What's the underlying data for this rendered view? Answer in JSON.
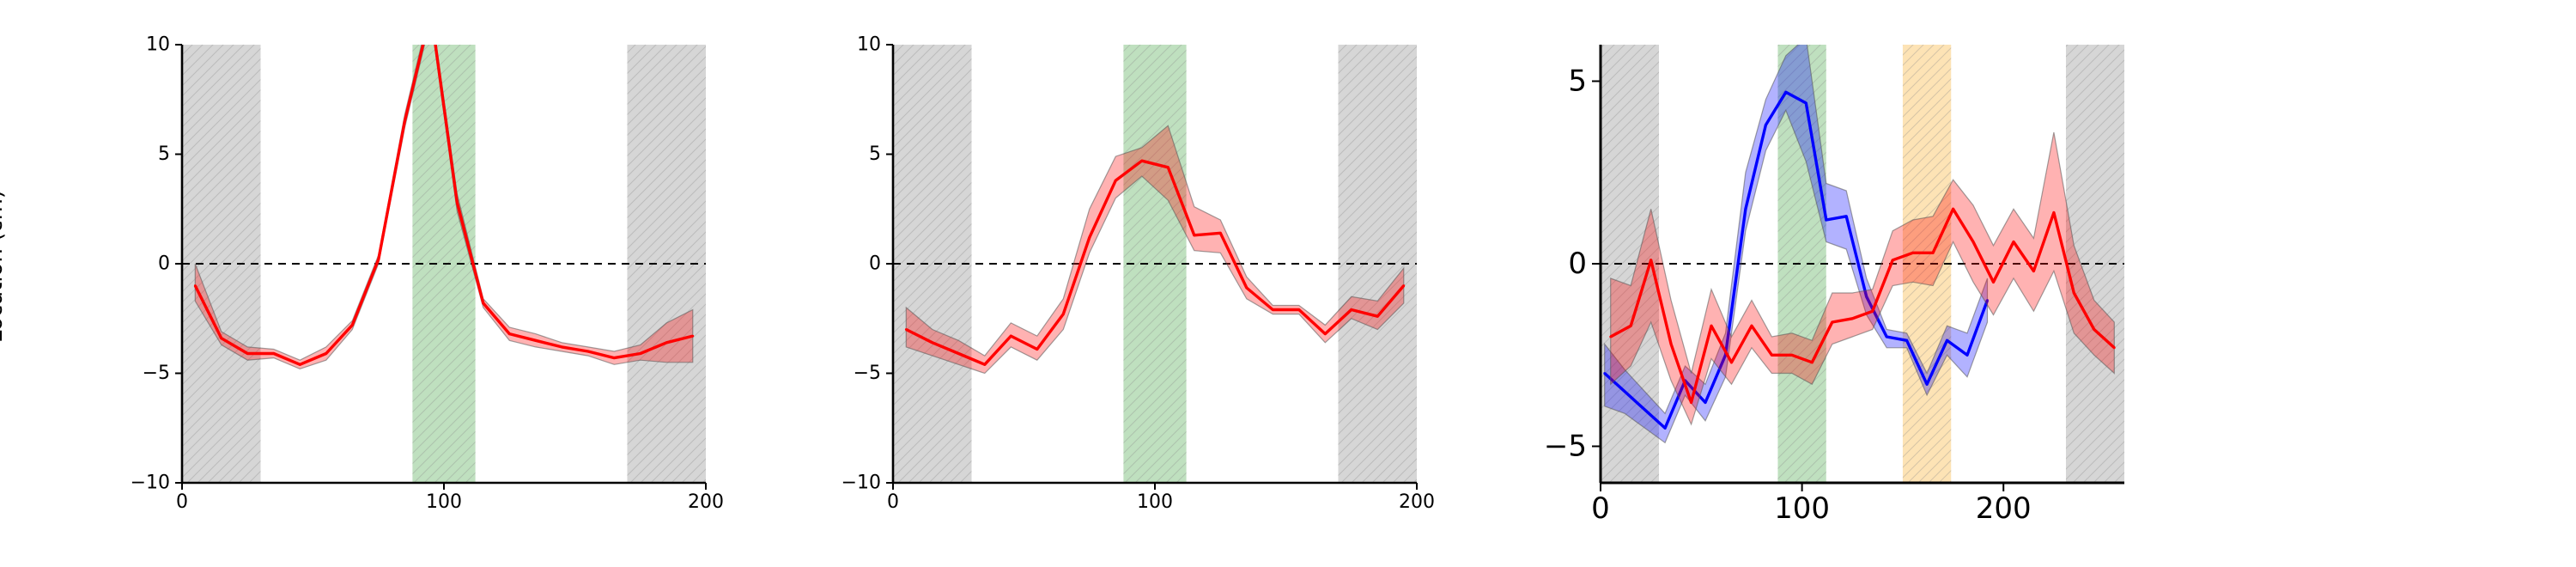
{
  "ylabel": "Location (cm)",
  "chart_data": [
    {
      "type": "line",
      "xlim": [
        0,
        200
      ],
      "ylim": [
        -10,
        10
      ],
      "xticks": [
        0,
        100,
        200
      ],
      "yticks": [
        -10,
        -5,
        0,
        5,
        10
      ],
      "reference_line": {
        "y": 0,
        "style": "dashed",
        "color": "#000000"
      },
      "regions": [
        {
          "x0": 0,
          "x1": 30,
          "color": "#d6d6d6",
          "hatch": true,
          "label": ""
        },
        {
          "x0": 88,
          "x1": 112,
          "color": "#bfe0bf",
          "hatch": true,
          "label": ""
        },
        {
          "x0": 170,
          "x1": 200,
          "color": "#d6d6d6",
          "hatch": true,
          "label": ""
        }
      ],
      "series": [
        {
          "color": "#ff0000",
          "x": [
            5,
            15,
            25,
            35,
            45,
            55,
            65,
            75,
            85,
            95,
            105,
            115,
            125,
            135,
            145,
            155,
            165,
            175,
            185,
            195
          ],
          "y": [
            -1,
            -3.4,
            -4.1,
            -4.1,
            -4.6,
            -4.1,
            -2.8,
            0.2,
            6.5,
            11.5,
            2.8,
            -1.8,
            -3.2,
            -3.5,
            -3.8,
            -4.0,
            -4.3,
            -4.1,
            -3.6,
            -3.3
          ],
          "lower": [
            -1.7,
            -3.7,
            -4.4,
            -4.3,
            -4.8,
            -4.4,
            -3.0,
            0.0,
            6.2,
            11.2,
            2.4,
            -2.0,
            -3.5,
            -3.8,
            -4.0,
            -4.2,
            -4.6,
            -4.4,
            -4.5,
            -4.5
          ],
          "upper": [
            0.0,
            -3.1,
            -3.8,
            -3.9,
            -4.4,
            -3.8,
            -2.6,
            0.4,
            6.8,
            11.8,
            3.2,
            -1.6,
            -2.9,
            -3.2,
            -3.6,
            -3.8,
            -4.0,
            -3.7,
            -2.7,
            -2.1
          ]
        }
      ]
    },
    {
      "type": "line",
      "xlim": [
        0,
        200
      ],
      "ylim": [
        -10,
        10
      ],
      "xticks": [
        0,
        100,
        200
      ],
      "yticks": [
        -10,
        -5,
        0,
        5,
        10
      ],
      "reference_line": {
        "y": 0,
        "style": "dashed",
        "color": "#000000"
      },
      "regions": [
        {
          "x0": 0,
          "x1": 30,
          "color": "#d6d6d6",
          "hatch": true,
          "label": ""
        },
        {
          "x0": 88,
          "x1": 112,
          "color": "#bfe0bf",
          "hatch": true,
          "label": ""
        },
        {
          "x0": 170,
          "x1": 200,
          "color": "#d6d6d6",
          "hatch": true,
          "label": ""
        }
      ],
      "series": [
        {
          "color": "#ff0000",
          "x": [
            5,
            15,
            25,
            35,
            45,
            55,
            65,
            75,
            85,
            95,
            105,
            115,
            125,
            135,
            145,
            155,
            165,
            175,
            185,
            195
          ],
          "y": [
            -3.0,
            -3.6,
            -4.1,
            -4.6,
            -3.3,
            -3.9,
            -2.3,
            1.2,
            3.8,
            4.7,
            4.4,
            1.3,
            1.4,
            -1.1,
            -2.1,
            -2.1,
            -3.2,
            -2.1,
            -2.4,
            -1.0
          ],
          "lower": [
            -3.8,
            -4.2,
            -4.6,
            -5.0,
            -3.8,
            -4.4,
            -3.0,
            0.5,
            3.0,
            4.0,
            2.9,
            0.6,
            0.5,
            -1.6,
            -2.3,
            -2.3,
            -3.6,
            -2.5,
            -3.0,
            -1.8
          ],
          "upper": [
            -2.0,
            -3.0,
            -3.5,
            -4.2,
            -2.7,
            -3.3,
            -1.6,
            2.5,
            4.9,
            5.3,
            6.3,
            2.6,
            2.0,
            -0.6,
            -1.9,
            -1.9,
            -2.8,
            -1.5,
            -1.7,
            -0.2
          ]
        }
      ]
    },
    {
      "type": "line",
      "xlim": [
        0,
        260
      ],
      "ylim": [
        -6,
        6
      ],
      "xticks": [
        0,
        100,
        200
      ],
      "yticks": [
        -5,
        0,
        5
      ],
      "reference_line": {
        "y": 0,
        "style": "dashed",
        "color": "#000000"
      },
      "regions": [
        {
          "x0": 0,
          "x1": 29,
          "color": "#d6d6d6",
          "hatch": true,
          "label": ""
        },
        {
          "x0": 88,
          "x1": 112,
          "color": "#bfe0bf",
          "hatch": true,
          "label": ""
        },
        {
          "x0": 150,
          "x1": 174,
          "color": "#fde3b5",
          "hatch": true,
          "label": ""
        },
        {
          "x0": 231,
          "x1": 260,
          "color": "#d6d6d6",
          "hatch": true,
          "label": ""
        }
      ],
      "series": [
        {
          "color": "#0000ff",
          "x": [
            2,
            12,
            22,
            32,
            42,
            52,
            62,
            72,
            82,
            92,
            102,
            112,
            122,
            132,
            142,
            152,
            162,
            172,
            182,
            192
          ],
          "y": [
            -3.0,
            -3.5,
            -4.0,
            -4.5,
            -3.2,
            -3.8,
            -2.5,
            1.5,
            3.8,
            4.7,
            4.4,
            1.2,
            1.3,
            -0.9,
            -2.0,
            -2.1,
            -3.3,
            -2.1,
            -2.5,
            -1.0
          ],
          "lower": [
            -3.9,
            -4.1,
            -4.5,
            -4.9,
            -3.6,
            -4.3,
            -3.1,
            0.9,
            3.1,
            4.2,
            2.8,
            0.6,
            0.4,
            -1.4,
            -2.3,
            -2.3,
            -3.6,
            -2.5,
            -3.1,
            -1.6
          ],
          "upper": [
            -2.2,
            -2.9,
            -3.5,
            -4.1,
            -2.8,
            -3.3,
            -1.9,
            2.5,
            4.5,
            5.7,
            6.2,
            2.2,
            2.0,
            -0.4,
            -1.8,
            -1.9,
            -3.0,
            -1.7,
            -1.9,
            -0.4
          ]
        },
        {
          "color": "#ff0000",
          "x": [
            5,
            15,
            25,
            35,
            45,
            55,
            65,
            75,
            85,
            95,
            105,
            115,
            125,
            135,
            145,
            155,
            165,
            175,
            185,
            195,
            205,
            215,
            225,
            235,
            245,
            255
          ],
          "y": [
            -2.0,
            -1.7,
            0.1,
            -2.2,
            -3.8,
            -1.7,
            -2.7,
            -1.7,
            -2.5,
            -2.5,
            -2.7,
            -1.6,
            -1.5,
            -1.3,
            0.1,
            0.3,
            0.3,
            1.5,
            0.6,
            -0.5,
            0.6,
            -0.2,
            1.4,
            -0.8,
            -1.8,
            -2.3
          ],
          "lower": [
            -3.3,
            -2.8,
            -1.6,
            -3.2,
            -4.4,
            -2.6,
            -3.3,
            -2.3,
            -3.0,
            -3.0,
            -3.3,
            -2.2,
            -2.0,
            -1.8,
            -0.6,
            -0.5,
            -0.6,
            0.6,
            -0.5,
            -1.4,
            -0.4,
            -1.3,
            -0.2,
            -1.9,
            -2.5,
            -3.0
          ],
          "upper": [
            -0.4,
            -0.6,
            1.5,
            -1.0,
            -3.0,
            -0.7,
            -2.0,
            -1.0,
            -2.0,
            -1.9,
            -2.1,
            -0.8,
            -0.8,
            -0.7,
            0.9,
            1.2,
            1.3,
            2.3,
            1.6,
            0.5,
            1.5,
            0.7,
            3.6,
            0.5,
            -1.0,
            -1.6
          ]
        }
      ]
    }
  ]
}
